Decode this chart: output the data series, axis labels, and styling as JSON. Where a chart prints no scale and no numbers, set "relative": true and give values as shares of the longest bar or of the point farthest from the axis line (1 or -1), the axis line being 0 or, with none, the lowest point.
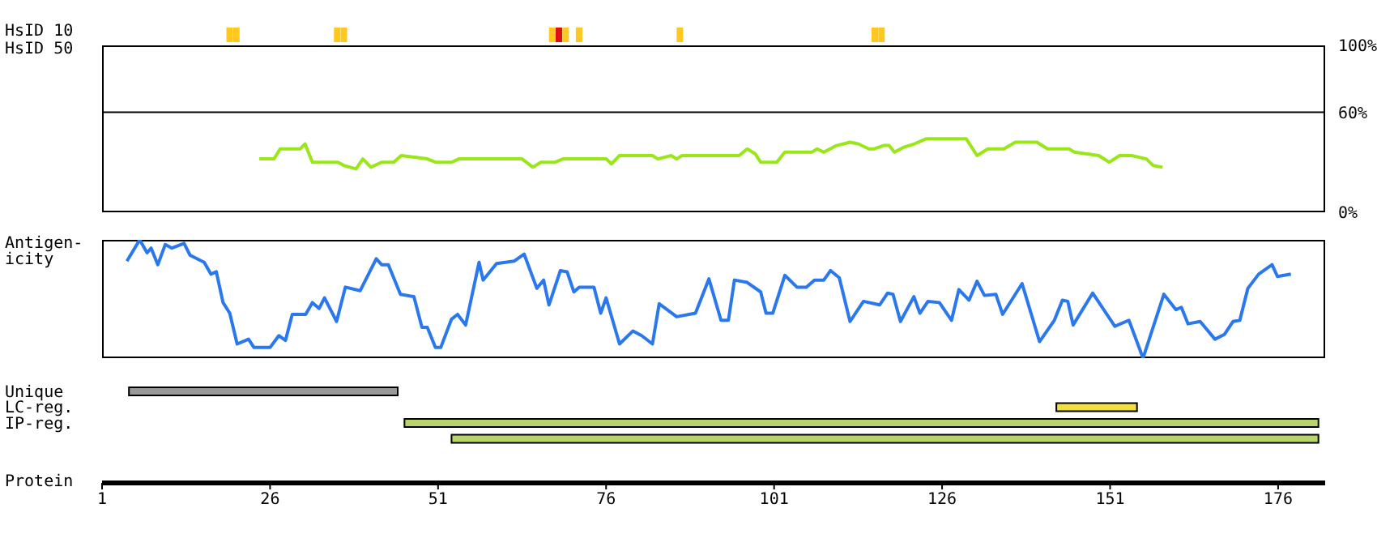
{
  "chart_data": [
    {
      "type": "bar",
      "ylabel": "HsID 10",
      "relative": true,
      "xlim": [
        1,
        183
      ],
      "tick_labels": false,
      "x": [
        20,
        21,
        36,
        37,
        68,
        69,
        70,
        72,
        87,
        116,
        117
      ],
      "values": [
        1,
        1,
        1,
        1,
        1,
        1,
        1,
        1,
        1,
        1,
        1
      ],
      "colors": [
        "#ffc821",
        "#ffc821",
        "#ffc821",
        "#ffc821",
        "#ffc821",
        "#dd1111",
        "#ffc821",
        "#ffc821",
        "#ffc821",
        "#ffc821",
        "#ffc821"
      ]
    },
    {
      "type": "line",
      "ylabel": "HsID 50",
      "xlim": [
        1,
        183
      ],
      "ylim": [
        0,
        100
      ],
      "yticks": [
        {
          "value": 0,
          "label": "0%"
        },
        {
          "value": 60,
          "label": "60%"
        },
        {
          "value": 100,
          "label": "100%"
        }
      ],
      "tick_labels": "y",
      "marker": "none",
      "ref_lines": [
        {
          "axis": "y",
          "value": 60,
          "label": null,
          "color": "#000000"
        }
      ],
      "series": [
        {
          "color": "#99e619",
          "x": [
            24.4,
            26.6,
            27.5,
            30.5,
            31.2,
            32.3,
            36.1,
            37,
            38.8,
            39.8,
            41,
            42.6,
            44.4,
            45.5,
            49.4,
            50.6,
            53,
            54.1,
            63.5,
            65.1,
            66.3,
            68.4,
            69.6,
            76,
            76.8,
            78,
            82.9,
            83.7,
            85.7,
            86.5,
            87.3,
            95.8,
            97,
            98.2,
            99,
            101.4,
            102.6,
            106.6,
            107.4,
            108.4,
            110.3,
            112.3,
            113.5,
            115.1,
            115.9,
            117.3,
            118.1,
            118.9,
            120.3,
            121.9,
            123.6,
            129.6,
            131.2,
            132.8,
            135.2,
            136.9,
            140.1,
            141.7,
            144.9,
            145.7,
            149.3,
            150.9,
            152.4,
            154.2,
            156.4,
            157.4,
            158.8
          ],
          "values": [
            32,
            32,
            38,
            38,
            41,
            30,
            30,
            28,
            26,
            32,
            27,
            30,
            30,
            34,
            32,
            30,
            30,
            32,
            32,
            27,
            30,
            30,
            32,
            32,
            29,
            34,
            34,
            32,
            34,
            32,
            34,
            34,
            38,
            35,
            30,
            30,
            36,
            36,
            38,
            36,
            40,
            42,
            41,
            38,
            38,
            40,
            40,
            36,
            39,
            41,
            44,
            44,
            34,
            38,
            38,
            42,
            42,
            38,
            38,
            36,
            34,
            30,
            34,
            34,
            32,
            28,
            27
          ]
        }
      ]
    },
    {
      "type": "line",
      "ylabel": "Antigen-\nicity",
      "relative": true,
      "xlim": [
        1,
        183
      ],
      "tick_labels": false,
      "marker": "none",
      "series": [
        {
          "color": "#2a78ee",
          "x": [
            4.7,
            6.6,
            7.7,
            8.3,
            9.3,
            10.4,
            11.4,
            13.2,
            14.1,
            16.2,
            17.2,
            18,
            19,
            20,
            21.1,
            22.8,
            23.6,
            26,
            27.3,
            28.3,
            29.3,
            31.3,
            32.3,
            33.3,
            34.1,
            35.9,
            37.2,
            39.4,
            41.8,
            42.6,
            43.6,
            45.4,
            47.4,
            48.6,
            49.4,
            50.6,
            51.4,
            53,
            53.9,
            55.1,
            57.1,
            57.7,
            59.7,
            62.3,
            63.8,
            65.7,
            66.7,
            67.5,
            69.2,
            70.2,
            71.2,
            72,
            74.2,
            75.2,
            76,
            78,
            80,
            81.3,
            82.9,
            83.9,
            86.5,
            89.3,
            91.3,
            93.1,
            94.2,
            95.1,
            97,
            99,
            99.8,
            100.8,
            102.6,
            104.4,
            105.8,
            107,
            108.4,
            109.4,
            110.7,
            112.3,
            114.3,
            116.7,
            117.9,
            118.7,
            119.8,
            121.8,
            122.7,
            123.9,
            125.6,
            127.4,
            128.5,
            130,
            131.2,
            132.3,
            134,
            135,
            137.9,
            140.5,
            142.7,
            143.9,
            144.7,
            145.5,
            148.4,
            151.7,
            153.8,
            155.9,
            159,
            160.8,
            161.6,
            162.6,
            164.4,
            166.6,
            168,
            169.3,
            170.3,
            171.5,
            173.1,
            175.1,
            175.9,
            177.9
          ],
          "values": [
            0.82,
            1,
            0.89,
            0.93,
            0.79,
            0.96,
            0.93,
            0.97,
            0.87,
            0.81,
            0.71,
            0.73,
            0.47,
            0.38,
            0.12,
            0.16,
            0.09,
            0.09,
            0.19,
            0.15,
            0.37,
            0.37,
            0.47,
            0.42,
            0.51,
            0.31,
            0.6,
            0.57,
            0.84,
            0.79,
            0.79,
            0.54,
            0.52,
            0.26,
            0.26,
            0.09,
            0.09,
            0.33,
            0.37,
            0.28,
            0.81,
            0.66,
            0.8,
            0.82,
            0.88,
            0.59,
            0.66,
            0.45,
            0.74,
            0.73,
            0.56,
            0.6,
            0.6,
            0.38,
            0.51,
            0.12,
            0.23,
            0.19,
            0.12,
            0.46,
            0.35,
            0.38,
            0.67,
            0.32,
            0.32,
            0.66,
            0.64,
            0.56,
            0.38,
            0.38,
            0.7,
            0.6,
            0.6,
            0.66,
            0.66,
            0.74,
            0.68,
            0.31,
            0.48,
            0.45,
            0.55,
            0.54,
            0.31,
            0.52,
            0.38,
            0.48,
            0.47,
            0.32,
            0.58,
            0.49,
            0.65,
            0.53,
            0.54,
            0.37,
            0.63,
            0.14,
            0.32,
            0.49,
            0.48,
            0.28,
            0.55,
            0.27,
            0.32,
            0,
            0.54,
            0.41,
            0.43,
            0.29,
            0.31,
            0.16,
            0.2,
            0.31,
            0.32,
            0.59,
            0.71,
            0.79,
            0.69,
            0.71
          ]
        }
      ]
    },
    {
      "type": "bar",
      "orientation": "horizontal",
      "xlabel": "Protein",
      "categories": [
        "Unique",
        "LC-reg.",
        "IP-reg.",
        null
      ],
      "base": [
        5,
        143,
        46,
        53
      ],
      "values": [
        40,
        12,
        136,
        129
      ],
      "colors": [
        "#999999",
        "#f0e040",
        "#b8d46c",
        "#b8d46c"
      ],
      "xlim": [
        1,
        183
      ],
      "xticks": [
        1,
        26,
        51,
        76,
        101,
        126,
        151,
        176
      ]
    }
  ]
}
